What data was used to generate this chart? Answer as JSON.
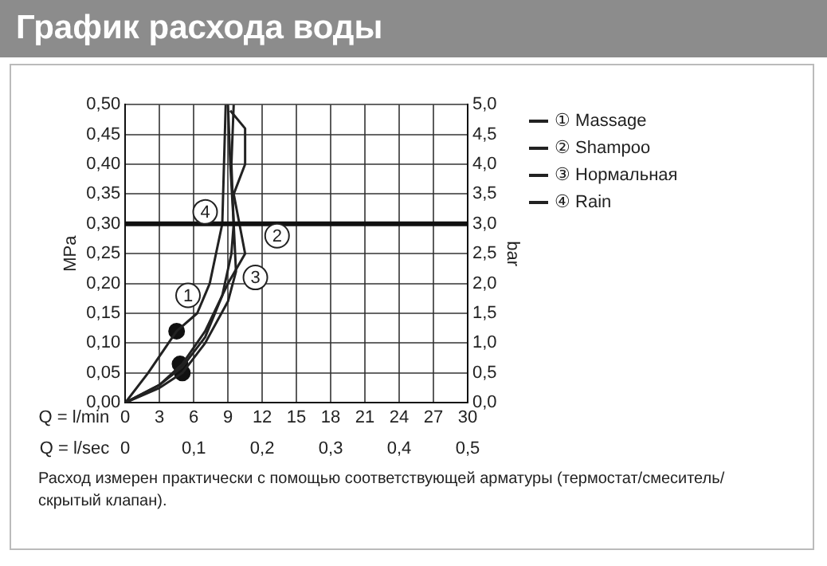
{
  "chart_data": {
    "type": "line",
    "title": "График расхода воды",
    "xlabel": "Q = l/min",
    "x2label": "Q = l/sec",
    "ylabel": "MPa",
    "y2label": "bar",
    "xlim": [
      0,
      30
    ],
    "xticks": [
      0,
      3,
      6,
      9,
      12,
      15,
      18,
      21,
      24,
      27,
      30
    ],
    "x2lim": [
      0,
      0.5
    ],
    "x2ticks": [
      {
        "value": 0,
        "label": "0"
      },
      {
        "value": 0.1,
        "label": "0,1"
      },
      {
        "value": 0.2,
        "label": "0,2"
      },
      {
        "value": 0.3,
        "label": "0,3"
      },
      {
        "value": 0.4,
        "label": "0,4"
      },
      {
        "value": 0.5,
        "label": "0,5"
      }
    ],
    "ylim": [
      0,
      0.5
    ],
    "yticks": [
      {
        "value": 0,
        "label": "0,00"
      },
      {
        "value": 0.05,
        "label": "0,05"
      },
      {
        "value": 0.1,
        "label": "0,10"
      },
      {
        "value": 0.15,
        "label": "0,15"
      },
      {
        "value": 0.2,
        "label": "0,20"
      },
      {
        "value": 0.25,
        "label": "0,25"
      },
      {
        "value": 0.3,
        "label": "0,30"
      },
      {
        "value": 0.35,
        "label": "0,35"
      },
      {
        "value": 0.4,
        "label": "0,40"
      },
      {
        "value": 0.45,
        "label": "0,45"
      },
      {
        "value": 0.5,
        "label": "0,50"
      }
    ],
    "y2lim": [
      0,
      5
    ],
    "y2ticks": [
      {
        "value": 0,
        "label": "0,0"
      },
      {
        "value": 0.5,
        "label": "0,5"
      },
      {
        "value": 1,
        "label": "1,0"
      },
      {
        "value": 1.5,
        "label": "1,5"
      },
      {
        "value": 2,
        "label": "2,0"
      },
      {
        "value": 2.5,
        "label": "2,5"
      },
      {
        "value": 3,
        "label": "3,0"
      },
      {
        "value": 3.5,
        "label": "3,5"
      },
      {
        "value": 4,
        "label": "4,0"
      },
      {
        "value": 4.5,
        "label": "4,5"
      },
      {
        "value": 5,
        "label": "5,0"
      }
    ],
    "grid": true,
    "legend": "right",
    "marker": "none",
    "line_style": "solid",
    "series": [
      {
        "name": "① Massage",
        "color": "#222222",
        "x": [
          0,
          2,
          4.5,
          6.3,
          7.4,
          8.5,
          8.8
        ],
        "values": [
          0,
          0.05,
          0.12,
          0.15,
          0.2,
          0.3,
          0.5
        ]
      },
      {
        "name": "② Shampoo",
        "color": "#222222",
        "x": [
          0,
          3,
          5,
          7,
          9,
          10.5,
          10,
          9.5,
          10.5,
          10.5,
          9.2
        ],
        "values": [
          0,
          0.03,
          0.065,
          0.12,
          0.2,
          0.25,
          0.3,
          0.35,
          0.4,
          0.46,
          0.49
        ]
      },
      {
        "name": "③ Нормальная",
        "color": "#222222",
        "x": [
          0,
          3,
          5,
          7,
          9,
          9.7,
          9.5,
          9.2,
          9
        ],
        "values": [
          0,
          0.025,
          0.05,
          0.1,
          0.17,
          0.22,
          0.3,
          0.4,
          0.5
        ]
      },
      {
        "name": "④ Rain",
        "color": "#222222",
        "x": [
          0,
          3,
          5,
          7,
          8.5,
          9.3,
          9.5,
          9.3,
          9.5
        ],
        "values": [
          0,
          0.03,
          0.06,
          0.11,
          0.18,
          0.25,
          0.3,
          0.4,
          0.5
        ]
      },
      {
        "type": "scatter",
        "marker": "circle",
        "color": "#111111",
        "x": [
          4.5,
          4.8,
          5
        ],
        "values": [
          0.12,
          0.065,
          0.05
        ]
      }
    ],
    "ref_lines": [
      {
        "axis": "y",
        "value": 0.3,
        "color": "#111111"
      }
    ],
    "annotations": [
      {
        "text": "1",
        "x": 5.5,
        "y": 0.18
      },
      {
        "text": "2",
        "x": 13.3,
        "y": 0.28
      },
      {
        "text": "3",
        "x": 11.4,
        "y": 0.21
      },
      {
        "text": "4",
        "x": 7,
        "y": 0.32
      },
      "Расход измерен практически с помощью соответствующей арматуры (термостат/смеситель/скрытый клапан)."
    ]
  }
}
